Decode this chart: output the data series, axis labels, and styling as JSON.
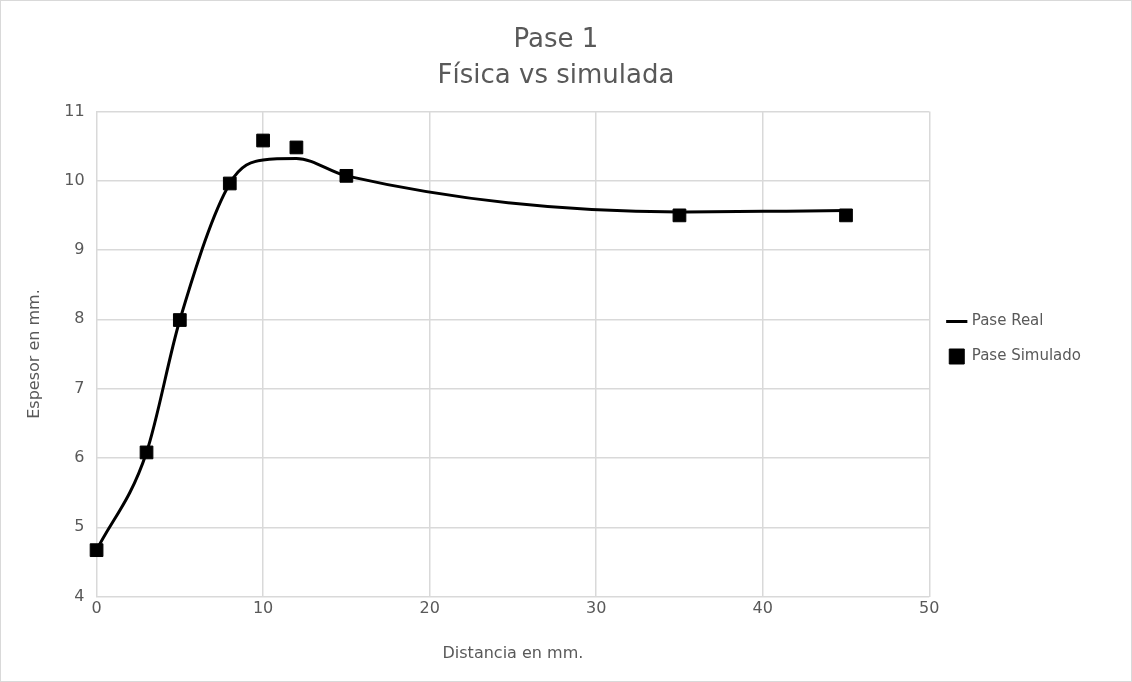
{
  "chart_data": {
    "type": "line",
    "title": "Pase 1",
    "subtitle": "Física vs simulada",
    "xlabel": "Distancia en mm.",
    "ylabel": "Espesor en mm.",
    "xlim": [
      0,
      50
    ],
    "xticks": [
      0,
      10,
      20,
      30,
      40,
      50
    ],
    "ylim": [
      4,
      11
    ],
    "yticks": [
      4,
      5,
      6,
      7,
      8,
      9,
      10,
      11
    ],
    "grid": true,
    "legend": "right",
    "series": [
      {
        "name": "Pase Real",
        "color": "#000000",
        "marker": "none",
        "x": [
          0,
          3,
          5,
          8,
          10,
          12,
          15,
          35,
          45
        ],
        "values": [
          4.67,
          6.08,
          7.99,
          9.96,
          10.3,
          10.32,
          10.07,
          9.55,
          9.57
        ]
      },
      {
        "name": "Pase Simulado",
        "type": "scatter",
        "color": "#000000",
        "marker": "square",
        "x": [
          0,
          3,
          5,
          8,
          10,
          12,
          15,
          35,
          45
        ],
        "values": [
          4.67,
          6.08,
          7.99,
          9.96,
          10.58,
          10.48,
          10.07,
          9.5,
          9.5
        ]
      }
    ]
  }
}
